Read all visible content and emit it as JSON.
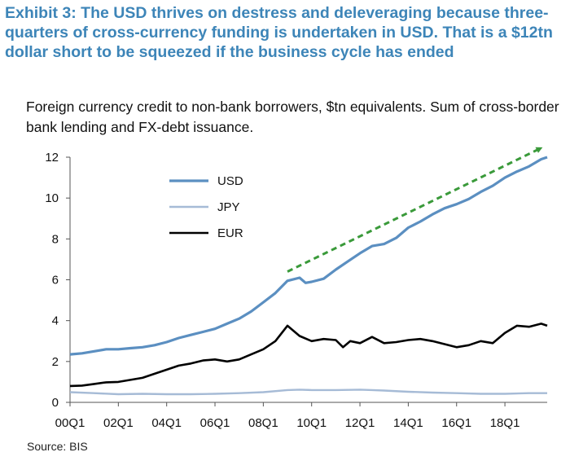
{
  "title": "Exhibit 3: The USD thrives on destress and deleveraging because three-quarters of cross-currency funding is undertaken in USD. That is a $12tn dollar short to be squeezed if the business cycle has ended",
  "subtitle": "Foreign currency credit to non-bank borrowers, $tn equivalents. Sum of cross-border bank lending and FX-debt issuance.",
  "source": "Source: BIS",
  "colors": {
    "title": "#3d85b8",
    "usd": "#5b8fc1",
    "jpy": "#a6bbd6",
    "eur": "#000000",
    "arrow": "#3a9a3a"
  },
  "chart_data": {
    "type": "line",
    "x_tick_labels": [
      "00Q1",
      "02Q1",
      "04Q1",
      "06Q1",
      "08Q1",
      "10Q1",
      "12Q1",
      "14Q1",
      "16Q1",
      "18Q1"
    ],
    "x_range": [
      2000.0,
      2019.75
    ],
    "ylim": [
      0,
      12
    ],
    "y_ticks": [
      0,
      2,
      4,
      6,
      8,
      10,
      12
    ],
    "legend_position": "top-left",
    "grid": false,
    "series": [
      {
        "name": "USD",
        "color": "#5b8fc1",
        "points": [
          [
            2000.0,
            2.35
          ],
          [
            2000.5,
            2.4
          ],
          [
            2001.0,
            2.5
          ],
          [
            2001.5,
            2.6
          ],
          [
            2002.0,
            2.6
          ],
          [
            2002.5,
            2.65
          ],
          [
            2003.0,
            2.7
          ],
          [
            2003.5,
            2.8
          ],
          [
            2004.0,
            2.95
          ],
          [
            2004.5,
            3.15
          ],
          [
            2005.0,
            3.3
          ],
          [
            2005.5,
            3.45
          ],
          [
            2006.0,
            3.6
          ],
          [
            2006.5,
            3.85
          ],
          [
            2007.0,
            4.1
          ],
          [
            2007.5,
            4.45
          ],
          [
            2008.0,
            4.9
          ],
          [
            2008.5,
            5.35
          ],
          [
            2009.0,
            5.95
          ],
          [
            2009.5,
            6.1
          ],
          [
            2009.75,
            5.85
          ],
          [
            2010.0,
            5.9
          ],
          [
            2010.5,
            6.05
          ],
          [
            2011.0,
            6.5
          ],
          [
            2011.5,
            6.9
          ],
          [
            2012.0,
            7.3
          ],
          [
            2012.5,
            7.65
          ],
          [
            2013.0,
            7.75
          ],
          [
            2013.5,
            8.05
          ],
          [
            2014.0,
            8.55
          ],
          [
            2014.5,
            8.85
          ],
          [
            2015.0,
            9.2
          ],
          [
            2015.5,
            9.5
          ],
          [
            2016.0,
            9.7
          ],
          [
            2016.5,
            9.95
          ],
          [
            2017.0,
            10.3
          ],
          [
            2017.5,
            10.6
          ],
          [
            2018.0,
            11.0
          ],
          [
            2018.5,
            11.3
          ],
          [
            2019.0,
            11.55
          ],
          [
            2019.5,
            11.9
          ],
          [
            2019.75,
            12.0
          ]
        ]
      },
      {
        "name": "JPY",
        "color": "#a6bbd6",
        "points": [
          [
            2000.0,
            0.5
          ],
          [
            2001.0,
            0.45
          ],
          [
            2002.0,
            0.4
          ],
          [
            2003.0,
            0.42
          ],
          [
            2004.0,
            0.4
          ],
          [
            2005.0,
            0.4
          ],
          [
            2006.0,
            0.42
          ],
          [
            2007.0,
            0.45
          ],
          [
            2008.0,
            0.5
          ],
          [
            2009.0,
            0.6
          ],
          [
            2009.5,
            0.62
          ],
          [
            2010.0,
            0.6
          ],
          [
            2011.0,
            0.6
          ],
          [
            2012.0,
            0.62
          ],
          [
            2012.5,
            0.6
          ],
          [
            2013.0,
            0.58
          ],
          [
            2014.0,
            0.52
          ],
          [
            2015.0,
            0.48
          ],
          [
            2016.0,
            0.45
          ],
          [
            2017.0,
            0.42
          ],
          [
            2018.0,
            0.42
          ],
          [
            2019.0,
            0.45
          ],
          [
            2019.75,
            0.45
          ]
        ]
      },
      {
        "name": "EUR",
        "color": "#000000",
        "points": [
          [
            2000.0,
            0.8
          ],
          [
            2000.5,
            0.82
          ],
          [
            2001.0,
            0.9
          ],
          [
            2001.5,
            0.98
          ],
          [
            2002.0,
            1.0
          ],
          [
            2002.5,
            1.1
          ],
          [
            2003.0,
            1.2
          ],
          [
            2003.5,
            1.4
          ],
          [
            2004.0,
            1.6
          ],
          [
            2004.5,
            1.8
          ],
          [
            2005.0,
            1.9
          ],
          [
            2005.5,
            2.05
          ],
          [
            2006.0,
            2.1
          ],
          [
            2006.5,
            2.0
          ],
          [
            2007.0,
            2.1
          ],
          [
            2007.5,
            2.35
          ],
          [
            2008.0,
            2.6
          ],
          [
            2008.5,
            3.0
          ],
          [
            2009.0,
            3.75
          ],
          [
            2009.5,
            3.25
          ],
          [
            2010.0,
            3.0
          ],
          [
            2010.5,
            3.1
          ],
          [
            2011.0,
            3.05
          ],
          [
            2011.3,
            2.7
          ],
          [
            2011.6,
            3.0
          ],
          [
            2012.0,
            2.9
          ],
          [
            2012.5,
            3.2
          ],
          [
            2013.0,
            2.9
          ],
          [
            2013.5,
            2.95
          ],
          [
            2014.0,
            3.05
          ],
          [
            2014.5,
            3.1
          ],
          [
            2015.0,
            3.0
          ],
          [
            2015.5,
            2.85
          ],
          [
            2016.0,
            2.7
          ],
          [
            2016.5,
            2.8
          ],
          [
            2017.0,
            3.0
          ],
          [
            2017.5,
            2.9
          ],
          [
            2018.0,
            3.4
          ],
          [
            2018.5,
            3.75
          ],
          [
            2019.0,
            3.7
          ],
          [
            2019.5,
            3.85
          ],
          [
            2019.75,
            3.75
          ]
        ]
      }
    ],
    "annotation": {
      "type": "dashed-arrow",
      "from": [
        2009.0,
        6.4
      ],
      "to": [
        2019.5,
        12.45
      ]
    }
  }
}
